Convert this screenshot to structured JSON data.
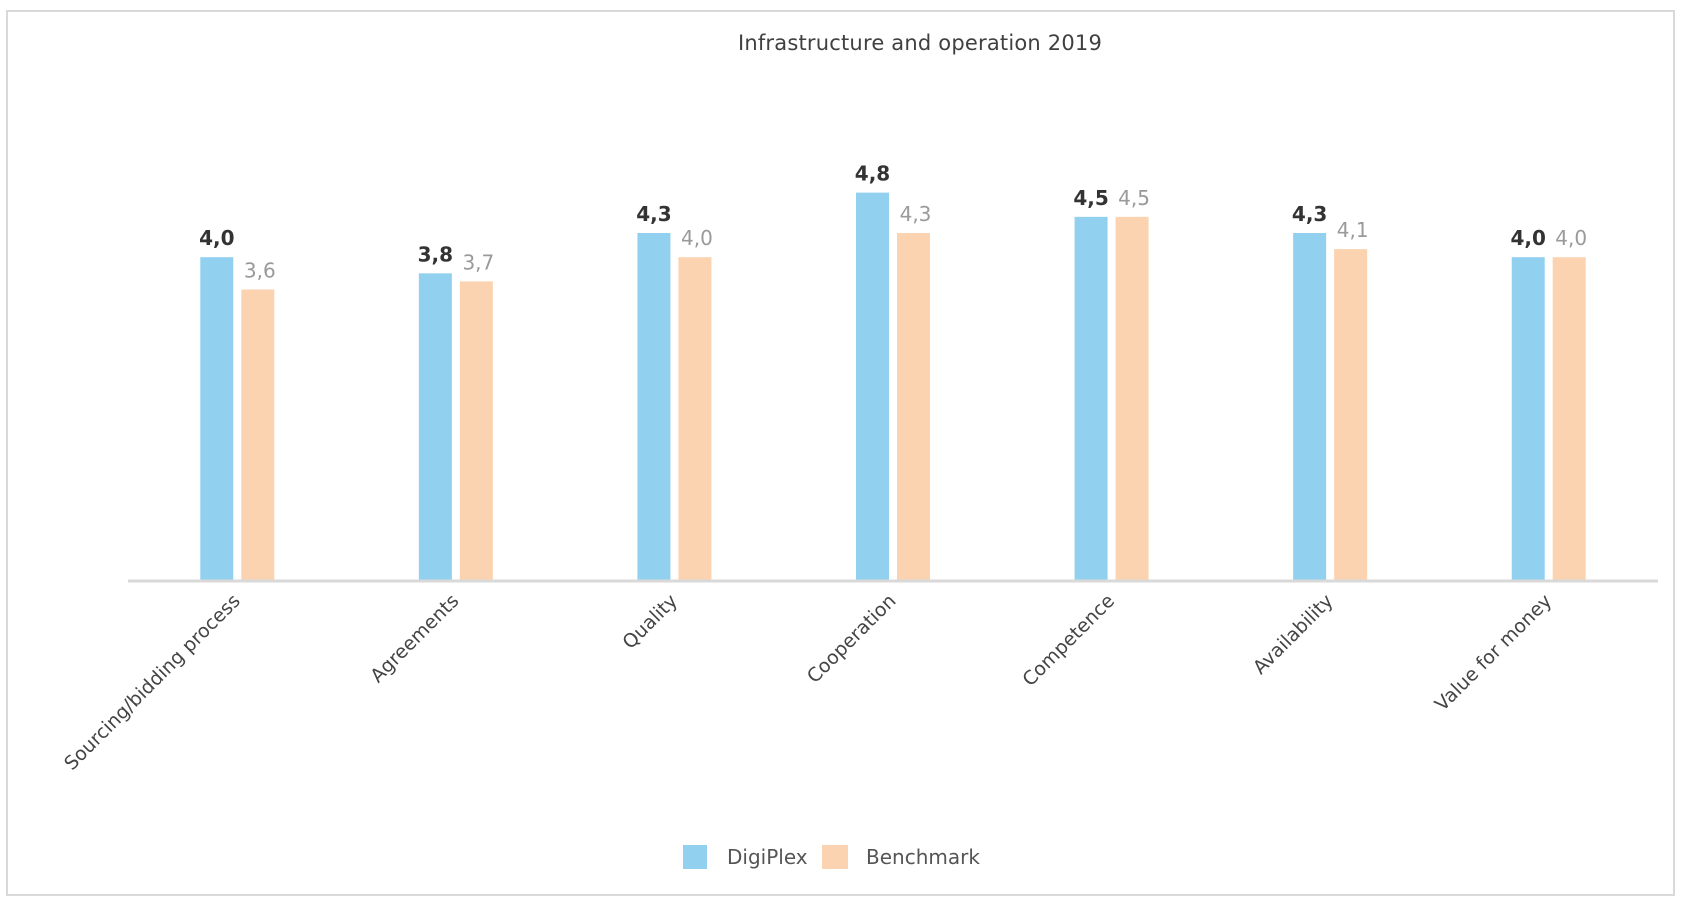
{
  "chart_data": {
    "type": "bar",
    "title": "Infrastructure and operation 2019",
    "xlabel": "",
    "ylabel": "",
    "ylim": [
      0,
      5
    ],
    "grid": false,
    "legend_position": "bottom",
    "categories": [
      "Sourcing/bidding process",
      "Agreements",
      "Quality",
      "Cooperation",
      "Competence",
      "Availability",
      "Value for money"
    ],
    "series": [
      {
        "name": "DigiPlex",
        "color": "#92d0f0",
        "values": [
          4.0,
          3.8,
          4.3,
          4.8,
          4.5,
          4.3,
          4.0
        ],
        "labels": [
          "4,0",
          "3,8",
          "4,3",
          "4,8",
          "4,5",
          "4,3",
          "4,0"
        ]
      },
      {
        "name": "Benchmark",
        "color": "#fbd3b1",
        "values": [
          3.6,
          3.7,
          4.0,
          4.3,
          4.5,
          4.1,
          4.0
        ],
        "labels": [
          "3,6",
          "3,7",
          "4,0",
          "4,3",
          "4,5",
          "4,1",
          "4,0"
        ]
      }
    ],
    "axis_color": "#d9d9d9",
    "label_colors": {
      "DigiPlex": "#333333",
      "Benchmark": "#9a9a9a"
    }
  }
}
